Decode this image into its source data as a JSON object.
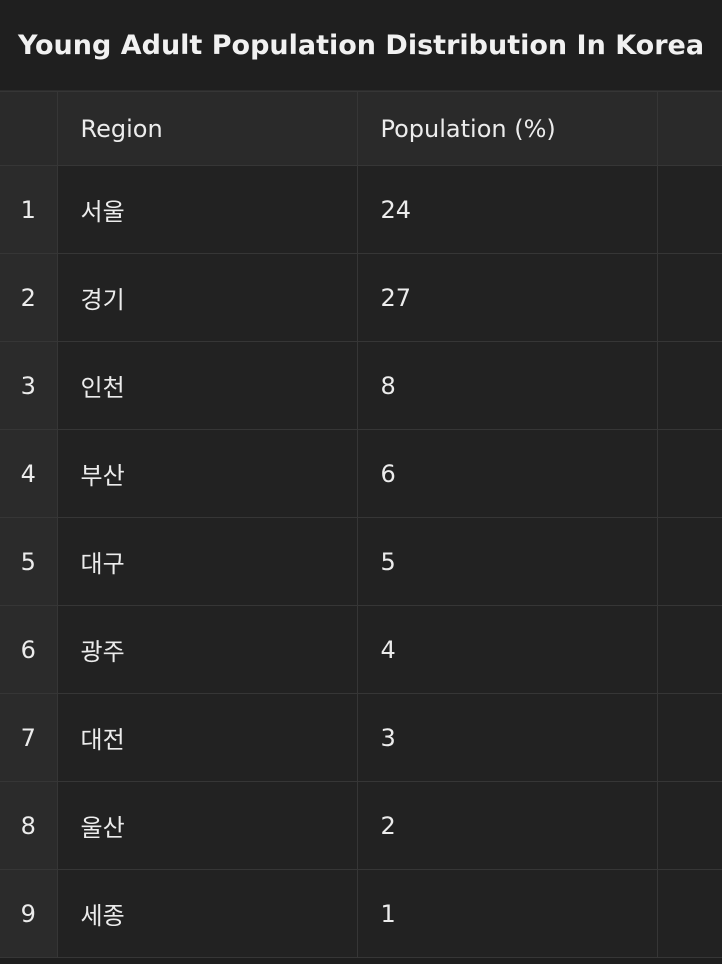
{
  "title": "Young Adult Population Distribution In Korea",
  "table": {
    "columns": [
      "",
      "Region",
      "Population (%)",
      ""
    ],
    "rows": [
      {
        "index": "1",
        "region": "서울",
        "population": "24"
      },
      {
        "index": "2",
        "region": "경기",
        "population": "27"
      },
      {
        "index": "3",
        "region": "인천",
        "population": "8"
      },
      {
        "index": "4",
        "region": "부산",
        "population": "6"
      },
      {
        "index": "5",
        "region": "대구",
        "population": "5"
      },
      {
        "index": "6",
        "region": "광주",
        "population": "4"
      },
      {
        "index": "7",
        "region": "대전",
        "population": "3"
      },
      {
        "index": "8",
        "region": "울산",
        "population": "2"
      },
      {
        "index": "9",
        "region": "세종",
        "population": "1"
      }
    ]
  }
}
